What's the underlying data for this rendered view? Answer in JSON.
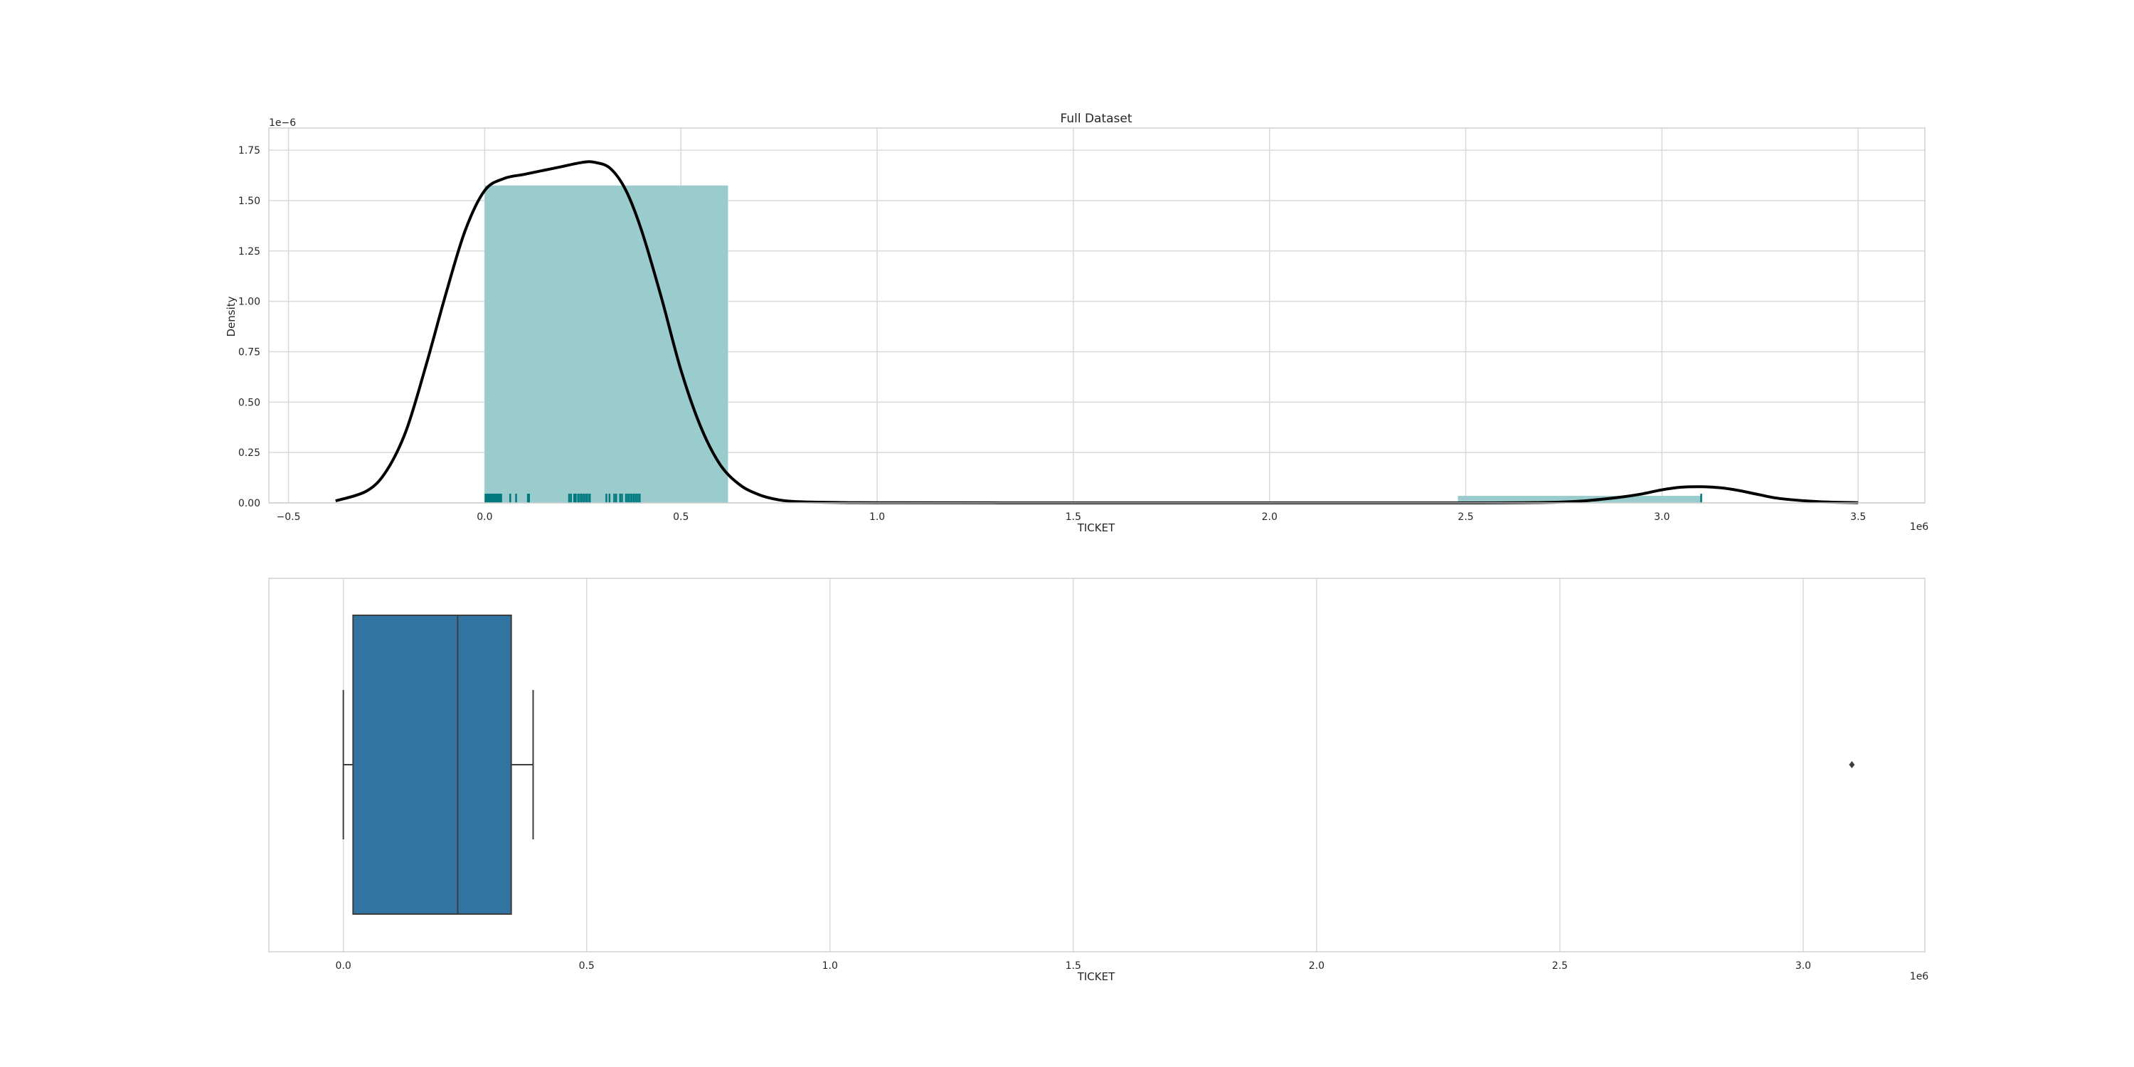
{
  "chart_data": [
    {
      "type": "histogram",
      "title": "Full Dataset",
      "xlabel": "TICKET",
      "ylabel": "Density",
      "x_offset_label": "1e6",
      "y_offset_label": "1e−6",
      "xlim": [
        -0.55,
        3.67
      ],
      "ylim": [
        0,
        1.86
      ],
      "x_ticks": [
        -0.5,
        0.0,
        0.5,
        1.0,
        1.5,
        2.0,
        2.5,
        3.0,
        3.5
      ],
      "x_tick_labels": [
        "−0.5",
        "0.0",
        "0.5",
        "1.0",
        "1.5",
        "2.0",
        "2.5",
        "3.0",
        "3.5"
      ],
      "y_ticks": [
        0,
        0.25,
        0.5,
        0.75,
        1.0,
        1.25,
        1.5,
        1.75
      ],
      "y_tick_labels": [
        "0.00",
        "0.25",
        "0.50",
        "0.75",
        "1.00",
        "1.25",
        "1.50",
        "1.75"
      ],
      "grid": true,
      "bins": [
        {
          "start": 0.0,
          "end": 0.62,
          "density": 1.575
        },
        {
          "start": 0.62,
          "end": 1.24,
          "density": 0.0
        },
        {
          "start": 1.24,
          "end": 1.86,
          "density": 0.0
        },
        {
          "start": 1.86,
          "end": 2.48,
          "density": 0.0
        },
        {
          "start": 2.48,
          "end": 3.1,
          "density": 0.035
        }
      ],
      "kde": {
        "x": [
          -0.38,
          -0.3,
          -0.25,
          -0.2,
          -0.15,
          -0.1,
          -0.05,
          0.0,
          0.05,
          0.1,
          0.15,
          0.2,
          0.25,
          0.28,
          0.32,
          0.36,
          0.4,
          0.45,
          0.5,
          0.55,
          0.6,
          0.65,
          0.7,
          0.75,
          0.8,
          0.9,
          1.0,
          1.5,
          2.0,
          2.5,
          2.7,
          2.8,
          2.9,
          2.95,
          3.0,
          3.05,
          3.1,
          3.15,
          3.2,
          3.25,
          3.3,
          3.4,
          3.5
        ],
        "y": [
          0.01,
          0.06,
          0.16,
          0.36,
          0.68,
          1.03,
          1.35,
          1.55,
          1.61,
          1.63,
          1.65,
          1.67,
          1.69,
          1.69,
          1.66,
          1.55,
          1.35,
          1.02,
          0.66,
          0.38,
          0.19,
          0.09,
          0.04,
          0.015,
          0.006,
          0.002,
          0.001,
          0.0,
          0.0,
          0.0,
          0.002,
          0.01,
          0.03,
          0.045,
          0.065,
          0.078,
          0.08,
          0.075,
          0.06,
          0.04,
          0.022,
          0.006,
          0.001
        ]
      },
      "rug": [
        0.002,
        0.006,
        0.01,
        0.014,
        0.018,
        0.022,
        0.026,
        0.03,
        0.034,
        0.038,
        0.042,
        0.065,
        0.08,
        0.11,
        0.113,
        0.215,
        0.22,
        0.228,
        0.232,
        0.238,
        0.243,
        0.248,
        0.253,
        0.258,
        0.263,
        0.268,
        0.31,
        0.318,
        0.33,
        0.335,
        0.345,
        0.35,
        0.36,
        0.365,
        0.37,
        0.375,
        0.38,
        0.385,
        0.39,
        0.395,
        3.1
      ],
      "colors": {
        "bar": "#9acccd",
        "kde": "#000000",
        "rug": "#00797f",
        "grid": "#d9d9d9"
      }
    },
    {
      "type": "box",
      "xlabel": "TICKET",
      "x_offset_label": "1e6",
      "xlim": [
        -0.153,
        3.25
      ],
      "x_ticks": [
        0.0,
        0.5,
        1.0,
        1.5,
        2.0,
        2.5,
        3.0
      ],
      "x_tick_labels": [
        "0.0",
        "0.5",
        "1.0",
        "1.5",
        "2.0",
        "2.5",
        "3.0"
      ],
      "grid": true,
      "whisker_low": 0.0,
      "q1": 0.02,
      "median": 0.235,
      "q3": 0.345,
      "whisker_high": 0.39,
      "outliers": [
        3.1
      ],
      "colors": {
        "box": "#3274a1",
        "line": "#3d3d3d",
        "grid": "#d9d9d9"
      }
    }
  ]
}
